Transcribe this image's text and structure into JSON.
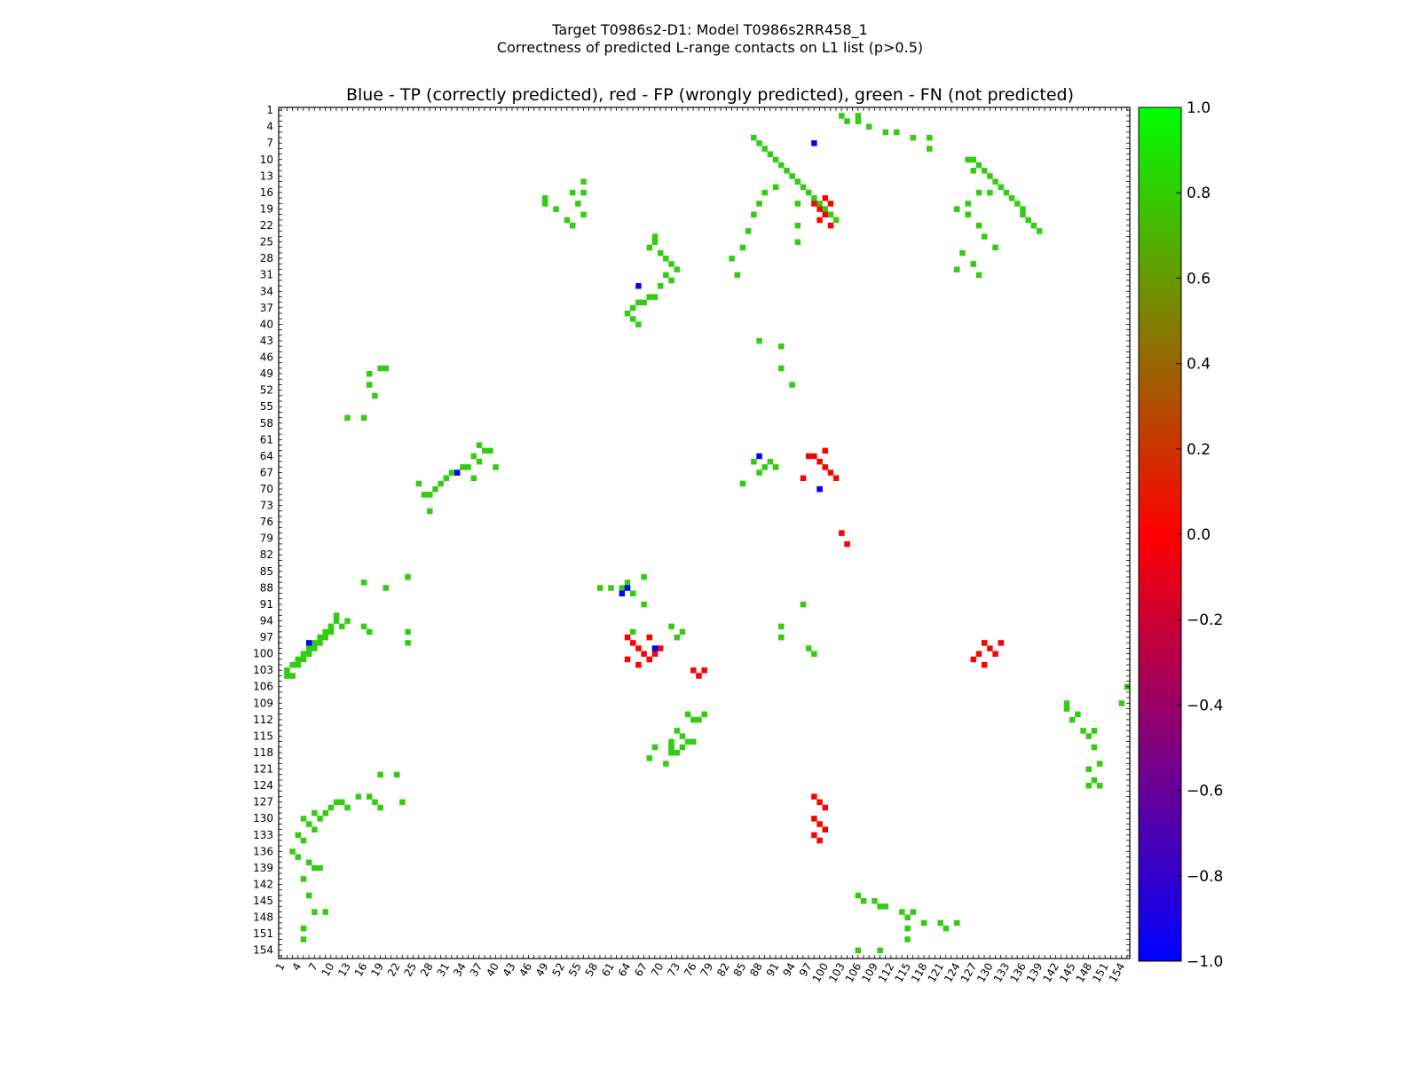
{
  "figure": {
    "title_line1": "Target T0986s2-D1: Model T0986s2RR458_1",
    "title_line2": "Correctness of predicted L-range contacts on L1 list (p>0.5)",
    "axes_title": "Blue - TP (correctly predicted), red - FP (wrongly predicted), green - FN (not predicted)"
  },
  "chart_data": {
    "type": "heatmap",
    "title": "Blue - TP (correctly predicted), red - FP (wrongly predicted), green - FN (not predicted)",
    "n": 155,
    "x_ticks": [
      1,
      4,
      7,
      10,
      13,
      16,
      19,
      22,
      25,
      28,
      31,
      34,
      37,
      40,
      43,
      46,
      49,
      52,
      55,
      58,
      61,
      64,
      67,
      70,
      73,
      76,
      79,
      82,
      85,
      88,
      91,
      94,
      97,
      100,
      103,
      106,
      109,
      112,
      115,
      118,
      121,
      124,
      127,
      130,
      133,
      136,
      139,
      142,
      145,
      148,
      151,
      154
    ],
    "y_ticks": [
      1,
      4,
      7,
      10,
      13,
      16,
      19,
      22,
      25,
      28,
      31,
      34,
      37,
      40,
      43,
      46,
      49,
      52,
      55,
      58,
      61,
      64,
      67,
      70,
      73,
      76,
      79,
      82,
      85,
      88,
      91,
      94,
      97,
      100,
      103,
      106,
      109,
      112,
      115,
      118,
      121,
      124,
      127,
      130,
      133,
      136,
      139,
      142,
      145,
      148,
      151,
      154
    ],
    "colorbar": {
      "min": -1.0,
      "max": 1.0,
      "ticks": [
        "1.0",
        "0.8",
        "0.6",
        "0.4",
        "0.2",
        "0.0",
        "−0.2",
        "−0.4",
        "−0.6",
        "−0.8",
        "−1.0"
      ],
      "colors": [
        "#0000ff",
        "#ff0000",
        "#00ff00"
      ]
    },
    "legend": {
      "TP": "#0000ff",
      "FP": "#ff0000",
      "FN": "#33cc11"
    },
    "values": {
      "TP": -1,
      "FP": 0,
      "FN": 0.75
    },
    "cells": {
      "FN": [
        [
          2,
          103
        ],
        [
          2,
          104
        ],
        [
          3,
          102
        ],
        [
          3,
          104
        ],
        [
          4,
          101
        ],
        [
          4,
          102
        ],
        [
          5,
          100
        ],
        [
          5,
          101
        ],
        [
          6,
          99
        ],
        [
          6,
          100
        ],
        [
          7,
          98
        ],
        [
          7,
          99
        ],
        [
          8,
          98
        ],
        [
          8,
          97
        ],
        [
          9,
          96
        ],
        [
          9,
          97
        ],
        [
          10,
          95
        ],
        [
          10,
          96
        ],
        [
          11,
          93
        ],
        [
          11,
          94
        ],
        [
          12,
          95
        ],
        [
          13,
          94
        ],
        [
          5,
          130
        ],
        [
          6,
          131
        ],
        [
          7,
          132
        ],
        [
          7,
          129
        ],
        [
          8,
          130
        ],
        [
          9,
          129
        ],
        [
          10,
          128
        ],
        [
          11,
          127
        ],
        [
          12,
          127
        ],
        [
          13,
          128
        ],
        [
          4,
          133
        ],
        [
          5,
          134
        ],
        [
          3,
          136
        ],
        [
          4,
          137
        ],
        [
          6,
          138
        ],
        [
          7,
          139
        ],
        [
          8,
          139
        ],
        [
          5,
          141
        ],
        [
          6,
          144
        ],
        [
          7,
          147
        ],
        [
          9,
          147
        ],
        [
          5,
          150
        ],
        [
          5,
          152
        ],
        [
          17,
          49
        ],
        [
          17,
          51
        ],
        [
          18,
          53
        ],
        [
          19,
          48
        ],
        [
          20,
          48
        ],
        [
          16,
          57
        ],
        [
          13,
          57
        ],
        [
          16,
          87
        ],
        [
          20,
          88
        ],
        [
          24,
          86
        ],
        [
          17,
          96
        ],
        [
          16,
          95
        ],
        [
          24,
          96
        ],
        [
          24,
          98
        ],
        [
          19,
          122
        ],
        [
          22,
          122
        ],
        [
          17,
          126
        ],
        [
          18,
          127
        ],
        [
          19,
          128
        ],
        [
          23,
          127
        ],
        [
          15,
          126
        ],
        [
          26,
          69
        ],
        [
          27,
          71
        ],
        [
          28,
          71
        ],
        [
          28,
          74
        ],
        [
          29,
          70
        ],
        [
          30,
          69
        ],
        [
          31,
          68
        ],
        [
          32,
          67
        ],
        [
          33,
          67
        ],
        [
          34,
          66
        ],
        [
          35,
          66
        ],
        [
          36,
          64
        ],
        [
          37,
          65
        ],
        [
          38,
          63
        ],
        [
          39,
          63
        ],
        [
          37,
          62
        ],
        [
          36,
          68
        ],
        [
          40,
          66
        ],
        [
          69,
          24
        ],
        [
          69,
          25
        ],
        [
          68,
          26
        ],
        [
          70,
          27
        ],
        [
          71,
          28
        ],
        [
          72,
          29
        ],
        [
          73,
          30
        ],
        [
          71,
          31
        ],
        [
          72,
          32
        ],
        [
          70,
          33
        ],
        [
          68,
          35
        ],
        [
          69,
          35
        ],
        [
          67,
          36
        ],
        [
          66,
          36
        ],
        [
          65,
          37
        ],
        [
          64,
          38
        ],
        [
          65,
          39
        ],
        [
          66,
          40
        ],
        [
          49,
          17
        ],
        [
          49,
          18
        ],
        [
          51,
          19
        ],
        [
          53,
          21
        ],
        [
          55,
          18
        ],
        [
          54,
          22
        ],
        [
          56,
          14
        ],
        [
          56,
          16
        ],
        [
          54,
          16
        ],
        [
          56,
          20
        ],
        [
          61,
          88
        ],
        [
          59,
          88
        ],
        [
          63,
          88
        ],
        [
          64,
          87
        ],
        [
          65,
          89
        ],
        [
          67,
          91
        ],
        [
          67,
          86
        ],
        [
          65,
          96
        ],
        [
          72,
          95
        ],
        [
          74,
          96
        ],
        [
          73,
          97
        ],
        [
          74,
          115
        ],
        [
          72,
          116
        ],
        [
          72,
          118
        ],
        [
          69,
          117
        ],
        [
          68,
          119
        ],
        [
          71,
          120
        ],
        [
          72,
          117
        ],
        [
          76,
          116
        ],
        [
          76,
          112
        ],
        [
          75,
          111
        ],
        [
          85,
          69
        ],
        [
          87,
          65
        ],
        [
          88,
          67
        ],
        [
          89,
          66
        ],
        [
          90,
          65
        ],
        [
          91,
          66
        ],
        [
          96,
          91
        ],
        [
          92,
          95
        ],
        [
          92,
          97
        ],
        [
          97,
          99
        ],
        [
          98,
          100
        ],
        [
          88,
          43
        ],
        [
          92,
          44
        ],
        [
          92,
          48
        ],
        [
          94,
          51
        ],
        [
          95,
          14
        ],
        [
          95,
          18
        ],
        [
          95,
          22
        ],
        [
          95,
          25
        ],
        [
          87,
          6
        ],
        [
          88,
          7
        ],
        [
          89,
          8
        ],
        [
          90,
          9
        ],
        [
          91,
          10
        ],
        [
          92,
          11
        ],
        [
          93,
          12
        ],
        [
          94,
          13
        ],
        [
          95,
          14
        ],
        [
          96,
          15
        ],
        [
          97,
          16
        ],
        [
          98,
          17
        ],
        [
          99,
          18
        ],
        [
          100,
          19
        ],
        [
          101,
          20
        ],
        [
          102,
          21
        ],
        [
          103,
          2
        ],
        [
          104,
          3
        ],
        [
          106,
          3
        ],
        [
          106,
          2
        ],
        [
          108,
          4
        ],
        [
          111,
          5
        ],
        [
          113,
          5
        ],
        [
          116,
          6
        ],
        [
          119,
          6
        ],
        [
          119,
          8
        ],
        [
          127,
          10
        ],
        [
          128,
          11
        ],
        [
          129,
          12
        ],
        [
          130,
          13
        ],
        [
          131,
          14
        ],
        [
          132,
          15
        ],
        [
          133,
          16
        ],
        [
          134,
          17
        ],
        [
          135,
          18
        ],
        [
          136,
          19
        ],
        [
          136,
          20
        ],
        [
          137,
          21
        ],
        [
          138,
          22
        ],
        [
          139,
          23
        ],
        [
          126,
          10
        ],
        [
          127,
          12
        ],
        [
          128,
          16
        ],
        [
          130,
          16
        ],
        [
          126,
          18
        ],
        [
          124,
          19
        ],
        [
          126,
          20
        ],
        [
          128,
          22
        ],
        [
          129,
          24
        ],
        [
          131,
          26
        ],
        [
          125,
          27
        ],
        [
          127,
          29
        ],
        [
          124,
          30
        ],
        [
          128,
          31
        ],
        [
          91,
          15
        ],
        [
          89,
          16
        ],
        [
          88,
          18
        ],
        [
          87,
          20
        ],
        [
          86,
          23
        ],
        [
          85,
          26
        ],
        [
          83,
          28
        ],
        [
          84,
          31
        ],
        [
          72,
          117
        ],
        [
          72,
          118
        ],
        [
          73,
          118
        ],
        [
          74,
          117
        ],
        [
          75,
          116
        ],
        [
          73,
          114
        ],
        [
          77,
          112
        ],
        [
          78,
          111
        ],
        [
          144,
          109
        ],
        [
          144,
          110
        ],
        [
          145,
          112
        ],
        [
          146,
          111
        ],
        [
          147,
          114
        ],
        [
          148,
          115
        ],
        [
          149,
          114
        ],
        [
          149,
          117
        ],
        [
          150,
          120
        ],
        [
          148,
          121
        ],
        [
          149,
          123
        ],
        [
          148,
          124
        ],
        [
          150,
          124
        ],
        [
          106,
          144
        ],
        [
          107,
          145
        ],
        [
          109,
          145
        ],
        [
          110,
          146
        ],
        [
          111,
          146
        ],
        [
          114,
          147
        ],
        [
          115,
          148
        ],
        [
          116,
          147
        ],
        [
          118,
          149
        ],
        [
          121,
          149
        ],
        [
          122,
          150
        ],
        [
          124,
          149
        ],
        [
          115,
          150
        ],
        [
          115,
          152
        ],
        [
          106,
          154
        ],
        [
          110,
          154
        ],
        [
          155,
          106
        ],
        [
          154,
          109
        ]
      ],
      "FP": [
        [
          98,
          18
        ],
        [
          99,
          19
        ],
        [
          100,
          20
        ],
        [
          101,
          18
        ],
        [
          99,
          21
        ],
        [
          100,
          17
        ],
        [
          101,
          22
        ],
        [
          98,
          64
        ],
        [
          99,
          65
        ],
        [
          100,
          66
        ],
        [
          101,
          67
        ],
        [
          102,
          68
        ],
        [
          97,
          64
        ],
        [
          96,
          68
        ],
        [
          99,
          70
        ],
        [
          100,
          63
        ],
        [
          129,
          98
        ],
        [
          130,
          99
        ],
        [
          131,
          100
        ],
        [
          132,
          98
        ],
        [
          128,
          100
        ],
        [
          127,
          101
        ],
        [
          129,
          102
        ],
        [
          64,
          97
        ],
        [
          65,
          98
        ],
        [
          66,
          99
        ],
        [
          67,
          100
        ],
        [
          68,
          101
        ],
        [
          69,
          100
        ],
        [
          64,
          101
        ],
        [
          66,
          102
        ],
        [
          70,
          99
        ],
        [
          68,
          97
        ],
        [
          103,
          78
        ],
        [
          104,
          80
        ],
        [
          76,
          103
        ],
        [
          77,
          104
        ],
        [
          78,
          103
        ],
        [
          98,
          126
        ],
        [
          99,
          127
        ],
        [
          100,
          128
        ],
        [
          98,
          130
        ],
        [
          99,
          131
        ],
        [
          100,
          132
        ],
        [
          98,
          133
        ],
        [
          99,
          134
        ]
      ],
      "TP": [
        [
          98,
          7
        ],
        [
          33,
          67
        ],
        [
          66,
          33
        ],
        [
          88,
          64
        ],
        [
          99,
          70
        ],
        [
          69,
          99
        ],
        [
          63,
          89
        ],
        [
          6,
          98
        ],
        [
          64,
          88
        ]
      ]
    }
  }
}
